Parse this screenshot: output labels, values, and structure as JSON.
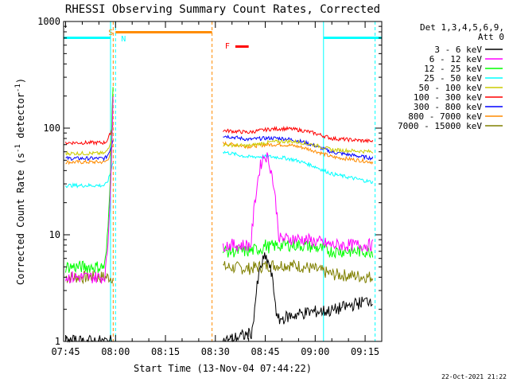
{
  "chart_data": {
    "type": "line",
    "title": "RHESSI Observing Summary Count Rates, Corrected",
    "xlabel": "Start Time (13-Nov-04 07:44:22)",
    "ylabel": "Corrected Count Rate (s",
    "ylabel_sup1": "-1",
    "ylabel_mid": " detector",
    "ylabel_sup2": "-1",
    "ylabel_end": ")",
    "yscale": "log",
    "ylim": [
      1,
      1000
    ],
    "xlim_minutes_after_0745": [
      -0.6,
      95
    ],
    "xticks": [
      {
        "label": "07:45",
        "m": 0
      },
      {
        "label": "08:00",
        "m": 15
      },
      {
        "label": "08:15",
        "m": 30
      },
      {
        "label": "08:30",
        "m": 45
      },
      {
        "label": "08:45",
        "m": 60
      },
      {
        "label": "09:00",
        "m": 75
      },
      {
        "label": "09:15",
        "m": 90
      }
    ],
    "yticks": [
      {
        "label": "1000",
        "v": 1000
      },
      {
        "label": "100",
        "v": 100
      },
      {
        "label": "10",
        "v": 10
      },
      {
        "label": "1",
        "v": 1
      }
    ],
    "legend_header": [
      "Det 1,3,4,5,6,9,",
      "Att 0"
    ],
    "legend_position": "right",
    "series": [
      {
        "name": "3 - 6 keV",
        "color": "#000000",
        "seg1": [
          1,
          1
        ],
        "seg2": [
          1,
          2.5
        ],
        "peak": 6
      },
      {
        "name": "6 - 12 keV",
        "color": "#ff00ff",
        "seg1": [
          4,
          200
        ],
        "seg2": [
          8,
          8
        ],
        "peak": 55
      },
      {
        "name": "12 - 25 keV",
        "color": "#00ff00",
        "seg1": [
          5,
          320
        ],
        "seg2": [
          7,
          7
        ],
        "peak": 8
      },
      {
        "name": "25 - 50 keV",
        "color": "#00ffff",
        "seg1": [
          29,
          50
        ],
        "seg2": [
          60,
          31
        ],
        "peak": 0
      },
      {
        "name": "50 - 100 keV",
        "color": "#cccc00",
        "seg1": [
          58,
          95
        ],
        "seg2": [
          70,
          60
        ],
        "peak": 0
      },
      {
        "name": "100 - 300 keV",
        "color": "#ff0000",
        "seg1": [
          73,
          110
        ],
        "seg2": [
          95,
          75
        ],
        "peak": 0
      },
      {
        "name": "300 - 800 keV",
        "color": "#0000ff",
        "seg1": [
          52,
          80
        ],
        "seg2": [
          85,
          52
        ],
        "peak": 0
      },
      {
        "name": "800 - 7000 keV",
        "color": "#ff8c00",
        "seg1": [
          48,
          70
        ],
        "seg2": [
          72,
          48
        ],
        "peak": 0
      },
      {
        "name": "7000 - 15000 keV",
        "color": "#808000",
        "seg1": [
          4,
          4
        ],
        "seg2": [
          5,
          4
        ],
        "peak": 0
      }
    ],
    "segments": {
      "seg1_minutes": [
        0,
        14.3
      ],
      "seg2_minutes": [
        47.3,
        92.5
      ]
    },
    "night_bars": [
      {
        "minutes": [
          -0.6,
          13.5
        ],
        "color": "#00ffff",
        "label": ""
      },
      {
        "minutes": [
          77.5,
          95
        ],
        "color": "#00ffff",
        "label": ""
      }
    ],
    "saa_bar": {
      "minutes": [
        15,
        44
      ],
      "color": "#ff8c00",
      "label": "S"
    },
    "n_label": "N",
    "flare_bar": {
      "minutes": [
        51,
        55
      ],
      "color": "#ff0000",
      "label": "F"
    },
    "vlines": [
      {
        "m": -0.6,
        "color": "#00ffff",
        "dash": false
      },
      {
        "m": 13.5,
        "color": "#00ffff",
        "dash": false
      },
      {
        "m": 15,
        "color": "#00ffff",
        "dash": true
      },
      {
        "m": 14.3,
        "color": "#ff8c00",
        "dash": true
      },
      {
        "m": 44,
        "color": "#ff8c00",
        "dash": true
      },
      {
        "m": 77.5,
        "color": "#00ffff",
        "dash": false
      },
      {
        "m": 93,
        "color": "#00ffff",
        "dash": true
      }
    ]
  },
  "footer_date": "22-Oct-2021 21:22"
}
